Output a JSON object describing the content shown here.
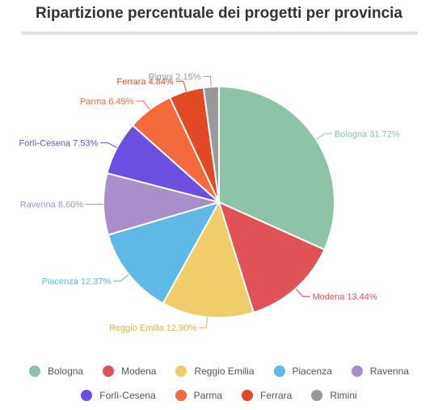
{
  "chart_data": {
    "type": "pie",
    "title": "Ripartizione percentuale dei progetti per provincia",
    "unit": "%",
    "slices": [
      {
        "name": "Bologna",
        "value": 31.72,
        "color": "#8dc3a7"
      },
      {
        "name": "Modena",
        "value": 13.44,
        "color": "#e05256"
      },
      {
        "name": "Reggio Emilia",
        "value": 12.9,
        "color": "#efcd6b"
      },
      {
        "name": "Piacenza",
        "value": 12.37,
        "color": "#5fb9e6"
      },
      {
        "name": "Ravenna",
        "value": 8.6,
        "color": "#a98fc9"
      },
      {
        "name": "Forlì-Cesena",
        "value": 7.53,
        "color": "#6c4fe0"
      },
      {
        "name": "Parma",
        "value": 6.45,
        "color": "#f56a3c"
      },
      {
        "name": "Ferrara",
        "value": 4.84,
        "color": "#e24a26"
      },
      {
        "name": "Rimini",
        "value": 2.15,
        "color": "#999999"
      }
    ],
    "data_labels": [
      "Bologna 31.72%",
      "Modena 13.44%",
      "Reggio Emilia 12.90%",
      "Piacenza 12.37%",
      "Ravenna 8.60%",
      "Forlì-Cesena 7.53%",
      "Parma 6.45%",
      "Ferrara 4.84%",
      "Rimini 2.15%"
    ],
    "legend": {
      "placement": "bottom",
      "row1": [
        "Bologna",
        "Modena",
        "Reggio Emilia",
        "Piacenza",
        "Ravenna"
      ],
      "row2": [
        "Forlì-Cesena",
        "Parma",
        "Ferrara",
        "Rimini"
      ]
    }
  }
}
